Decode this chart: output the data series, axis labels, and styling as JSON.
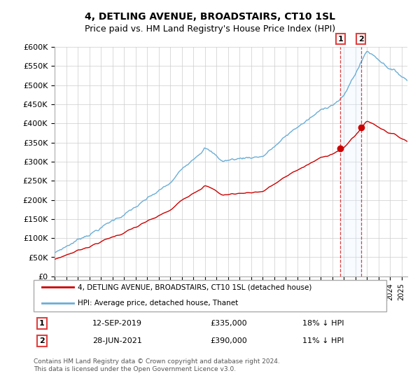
{
  "title": "4, DETLING AVENUE, BROADSTAIRS, CT10 1SL",
  "subtitle": "Price paid vs. HM Land Registry's House Price Index (HPI)",
  "ylabel_ticks": [
    "£0",
    "£50K",
    "£100K",
    "£150K",
    "£200K",
    "£250K",
    "£300K",
    "£350K",
    "£400K",
    "£450K",
    "£500K",
    "£550K",
    "£600K"
  ],
  "ylim": [
    0,
    600000
  ],
  "ytick_values": [
    0,
    50000,
    100000,
    150000,
    200000,
    250000,
    300000,
    350000,
    400000,
    450000,
    500000,
    550000,
    600000
  ],
  "hpi_color": "#6baed6",
  "price_color": "#cc0000",
  "vline_color": "#e04040",
  "shade_color": "#ddeeff",
  "sale1_price": 335000,
  "sale2_price": 390000,
  "sale1_year": 2019.71,
  "sale2_year": 2021.49,
  "legend1": "4, DETLING AVENUE, BROADSTAIRS, CT10 1SL (detached house)",
  "legend2": "HPI: Average price, detached house, Thanet",
  "row1": [
    "1",
    "12-SEP-2019",
    "£335,000",
    "18% ↓ HPI"
  ],
  "row2": [
    "2",
    "28-JUN-2021",
    "£390,000",
    "11% ↓ HPI"
  ],
  "footer": "Contains HM Land Registry data © Crown copyright and database right 2024.\nThis data is licensed under the Open Government Licence v3.0.",
  "background_color": "#ffffff",
  "grid_color": "#cccccc",
  "xstart": 1995,
  "xend": 2025.5
}
